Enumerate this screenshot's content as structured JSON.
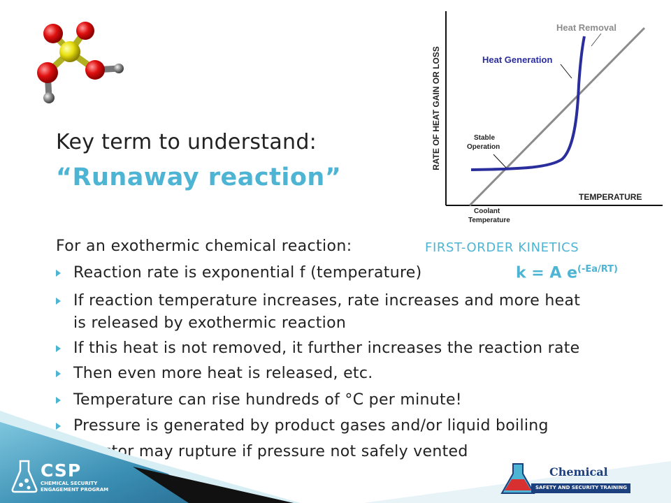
{
  "heading": {
    "line1": "Key term to understand:",
    "line2": "“Runaway reaction”"
  },
  "intro": "For an exothermic chemical reaction:",
  "kinetics_label": "FIRST-ORDER KINETICS",
  "formula": {
    "base": "k = A e",
    "exponent": "(-Ea/RT)"
  },
  "bullets": [
    "Reaction rate is exponential f (temperature)",
    "If reaction temperature increases, rate increases and more heat",
    "is released by exothermic reaction",
    "If this heat is not removed, it further increases the reaction rate",
    "Then even more heat is released, etc.",
    "Temperature can rise hundreds of °C per minute!",
    "Pressure is generated by product gases and/or liquid boiling",
    "Reactor may rupture if pressure not safely vented"
  ],
  "chart": {
    "ylabel": "RATE OF HEAT GAIN OR LOSS",
    "xlabel": "TEMPERATURE",
    "heat_removal": "Heat Removal",
    "heat_generation": "Heat Generation",
    "stable_line1": "Stable",
    "stable_line2": "Operation",
    "coolant_line1": "Coolant",
    "coolant_line2": "Temperature"
  },
  "chart_data": {
    "type": "line",
    "title": "",
    "xlabel": "TEMPERATURE",
    "ylabel": "RATE OF HEAT GAIN OR LOSS",
    "series": [
      {
        "name": "Heat Removal",
        "shape": "linear"
      },
      {
        "name": "Heat Generation",
        "shape": "exponential"
      }
    ],
    "annotations": [
      "Stable Operation",
      "Coolant Temperature"
    ],
    "grid": false
  },
  "logos": {
    "csp": "CSP",
    "csp_sub1": "CHEMICAL SECURITY",
    "csp_sub2": "ENGAGEMENT PROGRAM",
    "chemical": "Chemical",
    "chemical_sub": "SAFETY AND SECURITY TRAINING"
  },
  "colors": {
    "accent": "#4eb4d4",
    "heat_generation": "#2a2d9c",
    "heat_removal": "#8c8c8c",
    "brand_blue": "#1c3f7e"
  }
}
